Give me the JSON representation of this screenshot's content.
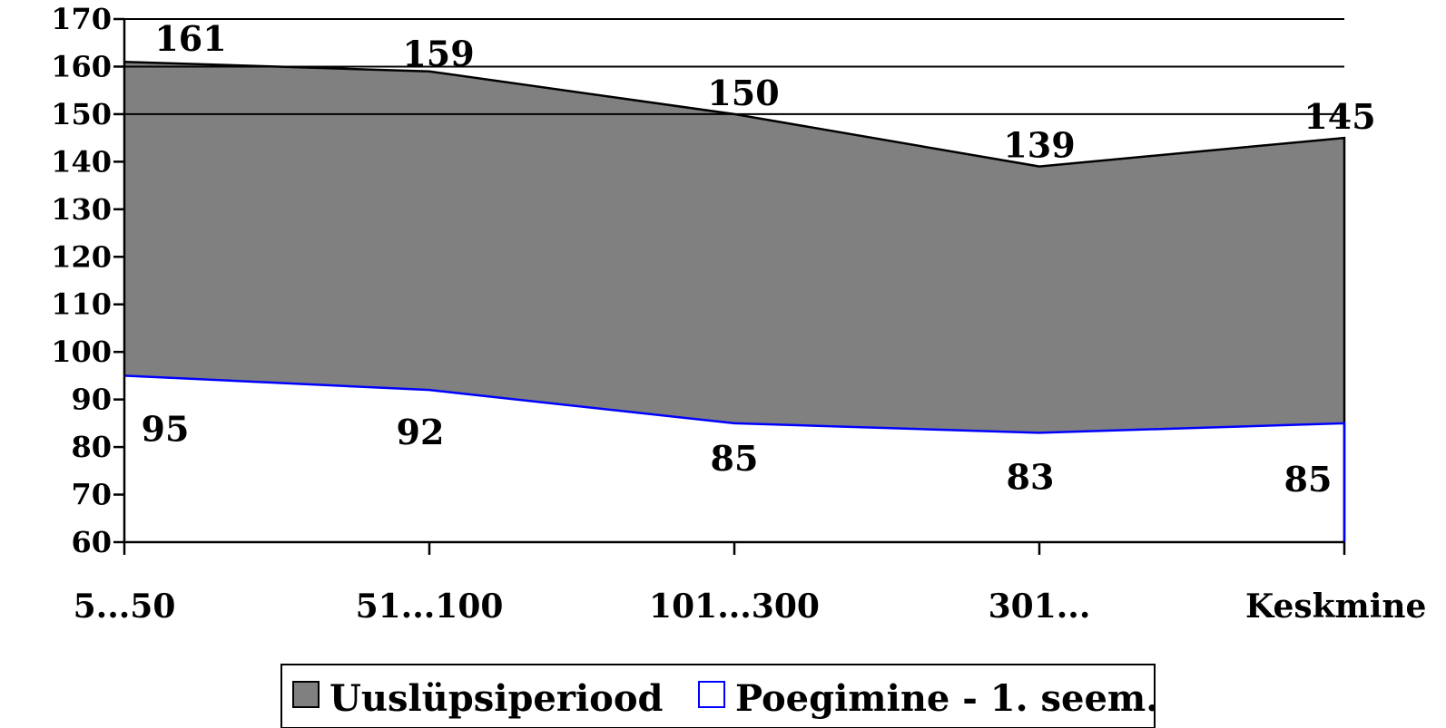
{
  "chart_data": {
    "type": "area",
    "categories": [
      "5...50",
      "51...100",
      "101...300",
      "301...",
      "Keskmine"
    ],
    "series": [
      {
        "name": "Uuslüpsiperiood",
        "values": [
          161,
          159,
          150,
          139,
          145
        ],
        "color": "#808080",
        "labels": [
          "161",
          "159",
          "150",
          "139",
          "145"
        ]
      },
      {
        "name": "Poegimine - 1. seem.",
        "values": [
          95,
          92,
          85,
          83,
          85
        ],
        "color": "#0000ff",
        "labels": [
          "95",
          "92",
          "85",
          "83",
          "85"
        ]
      }
    ],
    "title": "",
    "xlabel": "",
    "ylabel": "",
    "ylim": [
      60,
      170
    ],
    "yticks": [
      "60",
      "70",
      "80",
      "90",
      "100",
      "110",
      "120",
      "130",
      "140",
      "150",
      "160",
      "170"
    ],
    "grid": "horizontal, 150-170 only",
    "legend_position": "bottom"
  }
}
